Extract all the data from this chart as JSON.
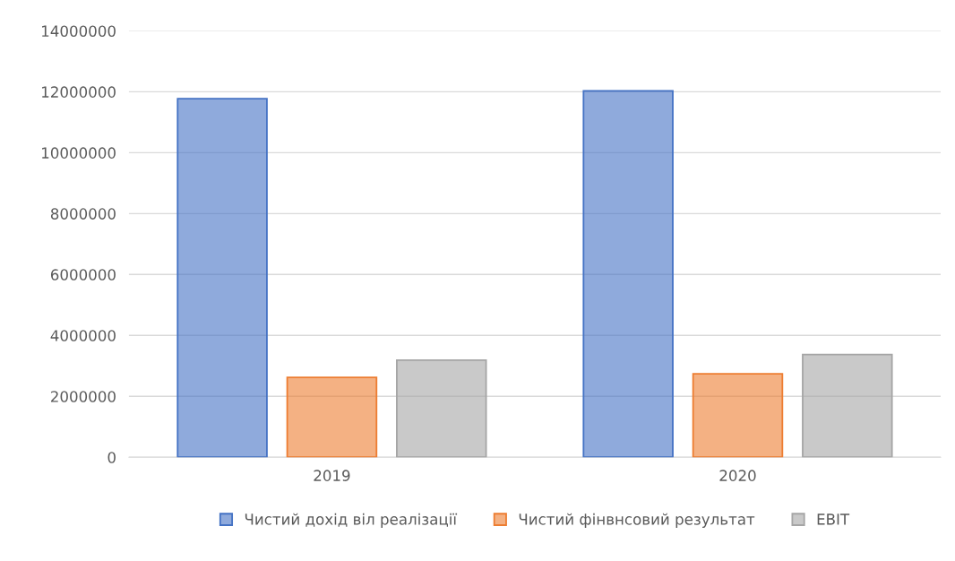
{
  "chart_data": {
    "type": "bar",
    "categories": [
      "2019",
      "2020"
    ],
    "series": [
      {
        "name": "Чистий дохід віл реалізації",
        "color": "#4472c4",
        "values": [
          11770000,
          12030000
        ]
      },
      {
        "name": "Чистий фінвнсовий результат",
        "color": "#ed7d31",
        "values": [
          2620000,
          2740000
        ]
      },
      {
        "name": "EBIT",
        "color": "#a5a5a5",
        "values": [
          3190000,
          3370000
        ]
      }
    ],
    "ylim": [
      0,
      14000000
    ],
    "yticks": [
      0,
      2000000,
      4000000,
      6000000,
      8000000,
      10000000,
      12000000,
      14000000
    ],
    "grid": "y",
    "legend": "bottom"
  }
}
